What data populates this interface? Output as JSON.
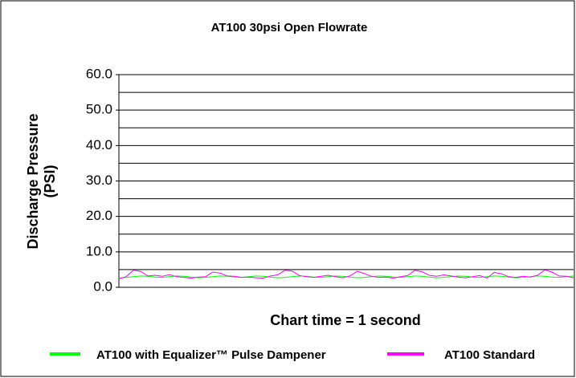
{
  "chart_data": {
    "type": "line",
    "title": "AT100 30psi Open Flowrate",
    "y_label": [
      "Discharge Pressure",
      "(PSI)"
    ],
    "x_label": "Chart time = 1 second",
    "ylim": [
      0,
      60
    ],
    "yticks": [
      {
        "value": 0,
        "label": "0.0"
      },
      {
        "value": 10,
        "label": "10.0"
      },
      {
        "value": 20,
        "label": "20.0"
      },
      {
        "value": 30,
        "label": "30.0"
      },
      {
        "value": 40,
        "label": "40.0"
      },
      {
        "value": 50,
        "label": "50.0"
      },
      {
        "value": 60,
        "label": "60.0"
      }
    ],
    "minor_yticks": [
      5,
      15,
      25,
      35,
      45,
      55
    ],
    "grid": true,
    "legend": "bottom",
    "series": [
      {
        "name": "AT100 with Equalizer™ Pulse Dampener",
        "color": "#00ff00",
        "values": [
          2.6,
          2.8,
          3.0,
          3.2,
          3.1,
          2.9,
          2.8,
          3.0,
          3.2,
          3.1,
          2.9,
          2.7,
          2.8,
          3.0,
          3.2,
          3.1,
          2.9,
          2.8,
          3.0,
          3.2,
          3.1,
          2.9,
          2.7,
          2.8,
          3.0,
          3.2,
          3.1,
          2.9,
          2.8,
          3.0,
          3.2,
          3.1,
          2.9,
          2.7,
          2.8,
          3.0,
          3.2,
          3.1,
          2.9,
          2.8,
          3.0,
          3.2,
          3.1,
          2.9,
          2.7,
          2.8,
          3.0,
          3.2,
          3.1,
          2.9,
          2.8,
          3.0,
          3.2,
          3.1,
          2.9,
          2.7,
          2.8,
          3.0,
          3.2,
          3.1,
          2.9,
          2.8,
          3.0,
          3.2
        ]
      },
      {
        "name": "AT100 Standard",
        "color": "#ff00ff",
        "values": [
          2.4,
          3.0,
          4.8,
          4.5,
          3.2,
          3.4,
          3.1,
          3.6,
          3.0,
          2.8,
          2.6,
          2.9,
          3.0,
          4.3,
          4.0,
          3.2,
          3.1,
          2.8,
          2.9,
          2.7,
          2.6,
          3.2,
          3.5,
          4.8,
          4.6,
          3.3,
          3.0,
          2.8,
          3.1,
          3.4,
          3.0,
          2.7,
          3.2,
          4.5,
          3.9,
          3.1,
          2.8,
          2.9,
          2.6,
          3.0,
          3.3,
          4.8,
          4.4,
          3.4,
          3.1,
          3.5,
          3.2,
          2.9,
          2.7,
          3.0,
          3.3,
          2.6,
          4.2,
          3.8,
          3.0,
          2.8,
          3.1,
          2.9,
          3.4,
          4.9,
          4.3,
          3.2,
          3.1,
          2.7
        ]
      }
    ]
  }
}
